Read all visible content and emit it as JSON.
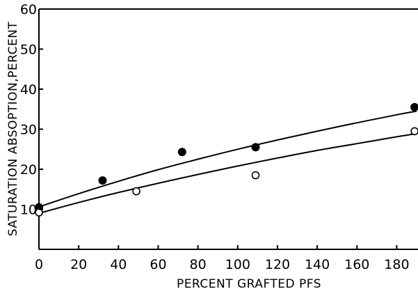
{
  "chart_data": {
    "type": "scatter",
    "title": "",
    "xlabel": "PERCENT GRAFTED PFS",
    "ylabel": "SATURATION ABSOPTION,PERCENT",
    "xlim": [
      0,
      190
    ],
    "ylim": [
      0,
      60
    ],
    "x_ticks": [
      0,
      20,
      40,
      60,
      80,
      100,
      120,
      140,
      160,
      180
    ],
    "y_ticks": [
      10,
      20,
      30,
      40,
      50,
      60
    ],
    "grid": false,
    "series": [
      {
        "marker": "filled-circle",
        "points": [
          [
            0,
            10.5
          ],
          [
            32,
            17.2
          ],
          [
            72,
            24.3
          ],
          [
            109,
            25.5
          ],
          [
            189,
            35.5
          ]
        ]
      },
      {
        "marker": "open-circle",
        "points": [
          [
            0,
            9.2
          ],
          [
            49,
            14.5
          ],
          [
            109,
            18.5
          ],
          [
            189,
            29.5
          ]
        ]
      }
    ],
    "fit_curves": [
      {
        "marker": "filled-circle",
        "points": [
          [
            0,
            10.6
          ],
          [
            20,
            13.9
          ],
          [
            40,
            17.0
          ],
          [
            60,
            19.9
          ],
          [
            80,
            22.5
          ],
          [
            100,
            25.0
          ],
          [
            120,
            27.3
          ],
          [
            140,
            29.5
          ],
          [
            160,
            31.6
          ],
          [
            180,
            33.6
          ],
          [
            190,
            34.5
          ]
        ]
      },
      {
        "marker": "open-circle",
        "points": [
          [
            0,
            9.0
          ],
          [
            20,
            11.7
          ],
          [
            40,
            14.2
          ],
          [
            60,
            16.5
          ],
          [
            80,
            18.7
          ],
          [
            100,
            20.8
          ],
          [
            120,
            22.8
          ],
          [
            140,
            24.7
          ],
          [
            160,
            26.4
          ],
          [
            180,
            28.1
          ],
          [
            190,
            28.9
          ]
        ]
      }
    ]
  }
}
